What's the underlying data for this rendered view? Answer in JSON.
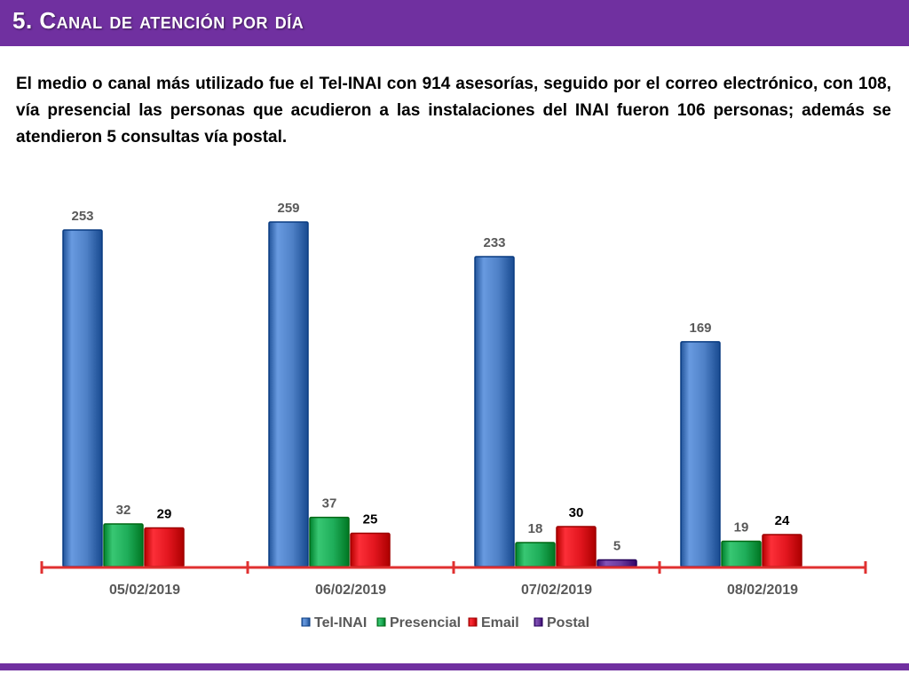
{
  "slide": {
    "title": "5. Canal de atención por día",
    "paragraph": "El medio o canal más utilizado fue el Tel-INAI con 914 asesorías, seguido por el correo electrónico, con 108, vía presencial las personas que acudieron a las instalaciones del INAI fueron 106 personas; además se atendieron 5 consultas vía postal."
  },
  "colors": {
    "header": "#7030a0",
    "axis": "#e03030",
    "label_gray": "#595959"
  },
  "chart_data": {
    "type": "bar",
    "categories": [
      "05/02/2019",
      "06/02/2019",
      "07/02/2019",
      "08/02/2019"
    ],
    "series": [
      {
        "name": "Tel-INAI",
        "color": "#4f81c7",
        "values": [
          253,
          259,
          233,
          169
        ]
      },
      {
        "name": "Presencial",
        "color": "#1fae5a",
        "values": [
          32,
          37,
          18,
          19
        ]
      },
      {
        "name": "Email",
        "color": "#e3161f",
        "values": [
          29,
          25,
          30,
          24
        ]
      },
      {
        "name": "Postal",
        "color": "#6a3a9e",
        "values": [
          null,
          null,
          5,
          null
        ]
      }
    ],
    "ylim": [
      0,
      265
    ],
    "legend": "bottom",
    "grid": false
  }
}
